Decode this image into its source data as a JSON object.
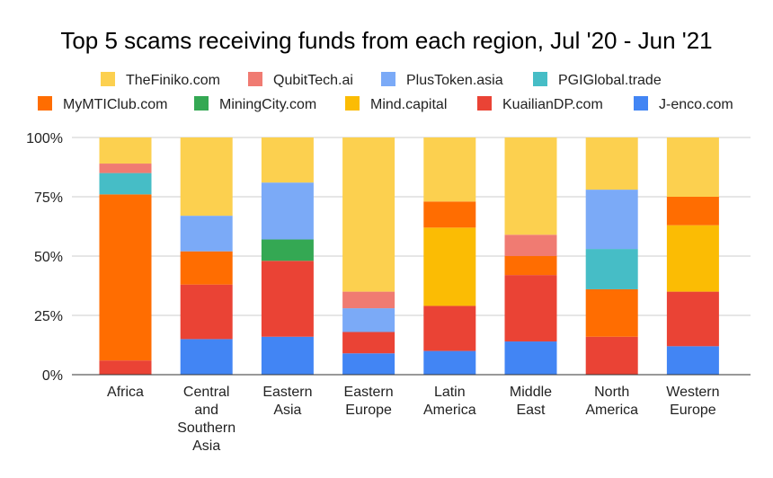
{
  "chart_data": {
    "type": "bar",
    "stacked": "percent",
    "title": "Top 5 scams receiving funds from each region, Jul '20 - Jun '21",
    "xlabel": "",
    "ylabel": "",
    "ylim": [
      0,
      100
    ],
    "yticks": [
      "0%",
      "25%",
      "50%",
      "75%",
      "100%"
    ],
    "grid": true,
    "legend_position": "top",
    "categories": [
      "Africa",
      "Central and Southern Asia",
      "Eastern Asia",
      "Eastern Europe",
      "Latin America",
      "Middle East",
      "North America",
      "Western Europe"
    ],
    "category_lines": [
      [
        "Africa"
      ],
      [
        "Central",
        "and",
        "Southern",
        "Asia"
      ],
      [
        "Eastern",
        "Asia"
      ],
      [
        "Eastern",
        "Europe"
      ],
      [
        "Latin",
        "America"
      ],
      [
        "Middle",
        "East"
      ],
      [
        "North",
        "America"
      ],
      [
        "Western",
        "Europe"
      ]
    ],
    "series": [
      {
        "name": "J-enco.com",
        "color": "#4285F4",
        "values": [
          0,
          15,
          16,
          9,
          10,
          14,
          0,
          12
        ]
      },
      {
        "name": "KuailianDP.com",
        "color": "#EA4335",
        "values": [
          6,
          23,
          32,
          9,
          19,
          28,
          16,
          23
        ]
      },
      {
        "name": "Mind.capital",
        "color": "#FBBC04",
        "values": [
          0,
          0,
          0,
          0,
          33,
          0,
          0,
          28
        ]
      },
      {
        "name": "MiningCity.com",
        "color": "#34A853",
        "values": [
          0,
          0,
          9,
          0,
          0,
          0,
          0,
          0
        ]
      },
      {
        "name": "MyMTIClub.com",
        "color": "#FF6D01",
        "values": [
          70,
          14,
          0,
          0,
          11,
          8,
          20,
          12
        ]
      },
      {
        "name": "PGIGlobal.trade",
        "color": "#46BDC6",
        "values": [
          9,
          0,
          0,
          0,
          0,
          0,
          17,
          0
        ]
      },
      {
        "name": "PlusToken.asia",
        "color": "#7BAAF7",
        "values": [
          0,
          15,
          24,
          10,
          0,
          0,
          25,
          0
        ]
      },
      {
        "name": "QubitTech.ai",
        "color": "#F07B72",
        "values": [
          4,
          0,
          0,
          7,
          0,
          9,
          0,
          0
        ]
      },
      {
        "name": "TheFiniko.com",
        "color": "#FCD04F",
        "values": [
          11,
          33,
          19,
          65,
          27,
          41,
          22,
          25
        ]
      }
    ],
    "legend_rows": [
      [
        "TheFiniko.com",
        "QubitTech.ai",
        "PlusToken.asia",
        "PGIGlobal.trade"
      ],
      [
        "MyMTIClub.com",
        "MiningCity.com",
        "Mind.capital",
        "KuailianDP.com",
        "J-enco.com"
      ]
    ]
  }
}
